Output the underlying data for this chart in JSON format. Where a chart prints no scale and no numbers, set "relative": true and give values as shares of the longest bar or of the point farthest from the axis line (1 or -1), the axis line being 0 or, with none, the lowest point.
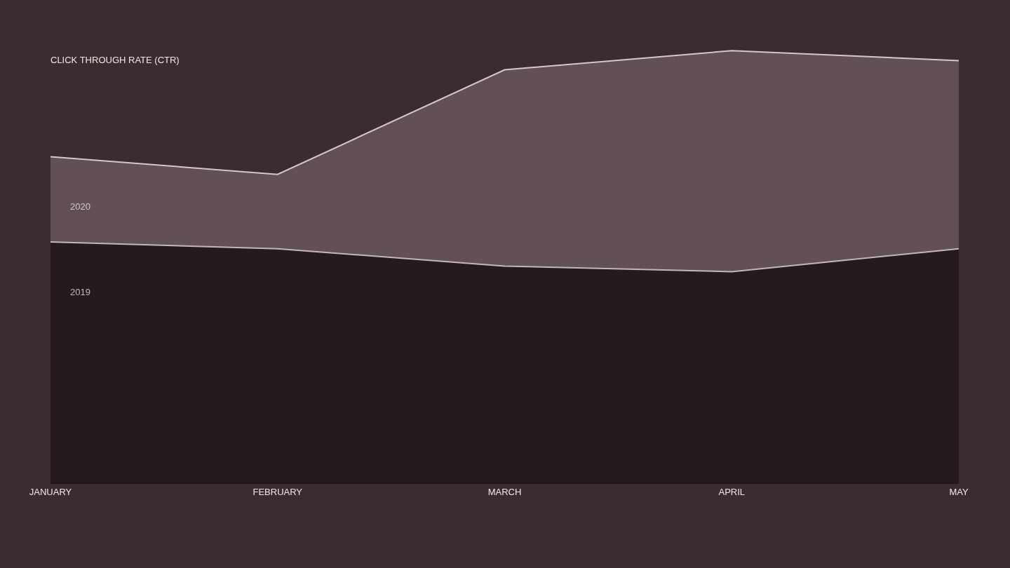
{
  "chart_data": {
    "type": "area",
    "title": "CLICK THROUGH RATE (CTR)",
    "relative": true,
    "categories": [
      "JANUARY",
      "FEBRUARY",
      "MARCH",
      "APRIL",
      "MAY"
    ],
    "legend": false,
    "series": [
      {
        "name": "2020",
        "color": "#634f56",
        "values": [
          0.755,
          0.714,
          0.956,
          1,
          0.977
        ]
      },
      {
        "name": "2019",
        "color": "#251a1e",
        "values": [
          0.558,
          0.542,
          0.502,
          0.489,
          0.542
        ]
      }
    ]
  }
}
